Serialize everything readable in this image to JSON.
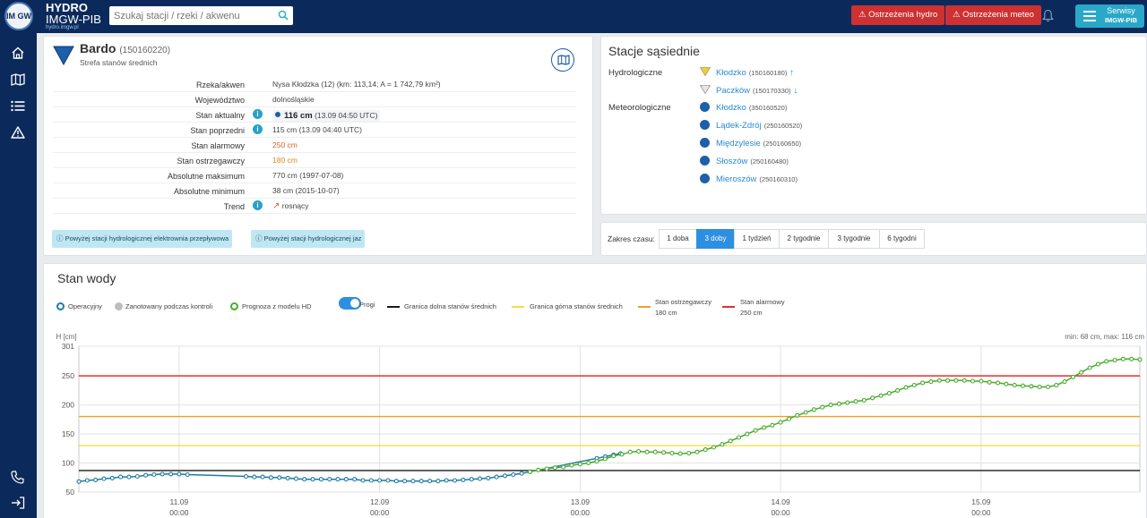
{
  "header": {
    "logo_text": "IM GW",
    "brand_line1": "HYDRO",
    "brand_line2": "IMGW-PIB",
    "brand_line3": "hydro.imgw.pl",
    "search_placeholder": "Szukaj stacji / rzeki / akwenu",
    "btn_hydro": "Ostrzeżenia hydro",
    "btn_meteo": "Ostrzeżenia meteo",
    "serwisy_line1": "Serwisy",
    "serwisy_line2": "IMGW-PIB",
    "colors": {
      "bar": "#0b2a5b",
      "warn": "#cd3131",
      "serwisy": "#2aa8c8"
    }
  },
  "sidebar": {
    "icons": [
      "home-icon",
      "map-icon",
      "list-icon",
      "warning-icon",
      "phone-icon",
      "logout-icon"
    ]
  },
  "station": {
    "name": "Bardo",
    "code": "(150160220)",
    "zone": "Strefa stanów średnich",
    "rows": [
      {
        "label": "Rzeka/akwen",
        "value": "Nysa Kłodzka (12) (km: 113,14; A = 1 742,79 km²)",
        "info": false,
        "style": ""
      },
      {
        "label": "Województwo",
        "value": "dolnośląskie",
        "info": false,
        "style": ""
      },
      {
        "label": "Stan aktualny",
        "value_bold": "116 cm",
        "value": "(13.09 04:50 UTC)",
        "info": true,
        "style": "current"
      },
      {
        "label": "Stan poprzedni",
        "value": "115 cm (13.09 04:40 UTC)",
        "info": true,
        "style": ""
      },
      {
        "label": "Stan alarmowy",
        "value": "250 cm",
        "info": false,
        "style": "red"
      },
      {
        "label": "Stan ostrzegawczy",
        "value": "180 cm",
        "info": false,
        "style": "orange"
      },
      {
        "label": "Absolutne maksimum",
        "value": "770 cm (1997-07-08)",
        "info": false,
        "style": ""
      },
      {
        "label": "Absolutne minimum",
        "value": "38 cm (2015-10-07)",
        "info": false,
        "style": ""
      },
      {
        "label": "Trend",
        "value": "rosnący",
        "info": true,
        "style": "trend"
      }
    ],
    "notes": [
      "Powyżej stacji hydrologicznej elektrownia przepływowa",
      "Powyżej stacji hydrologicznej jaz"
    ]
  },
  "neighbors": {
    "title": "Stacje sąsiednie",
    "hydro_label": "Hydrologiczne",
    "meteo_label": "Meteorologiczne",
    "hydro": [
      {
        "name": "Kłodzko",
        "code": "(150160180)",
        "arrow": "↑",
        "color": "#f2d21a"
      },
      {
        "name": "Paczków",
        "code": "(150170330)",
        "arrow": "↓",
        "color": "#e6e6e6"
      }
    ],
    "meteo": [
      {
        "name": "Kłodzko",
        "code": "(350160520)"
      },
      {
        "name": "Lądek-Zdrój",
        "code": "(250160520)"
      },
      {
        "name": "Międzylesie",
        "code": "(250160650)"
      },
      {
        "name": "Słoszów",
        "code": "(250160480)"
      },
      {
        "name": "Mieroszów",
        "code": "(250160310)"
      }
    ]
  },
  "range": {
    "label": "Zakres czasu:",
    "options": [
      "1 doba",
      "3 doby",
      "1 tydzień",
      "2 tygodnie",
      "3 tygodnie",
      "6 tygodni"
    ],
    "active": "3 doby"
  },
  "chart_panel": {
    "title": "Stan wody",
    "legend": {
      "operacyjny": "Operacyjny",
      "zanotowany": "Zanotowany podczas kontroli",
      "prognoza": "Prognoza z modelu HD",
      "progi": "Progi",
      "dolna": "Granica dolna stanów średnich",
      "gorna": "Granica górna stanów średnich",
      "ostrz_l1": "Stan ostrzegawczy",
      "ostrz_l2": "180 cm",
      "alarm_l1": "Stan alarmowy",
      "alarm_l2": "250 cm"
    },
    "minmax": "min: 68 cm, max: 116 cm"
  },
  "chart_data": {
    "type": "line",
    "ylabel": "H [cm]",
    "ylim": [
      50,
      301
    ],
    "yticks": [
      50,
      100,
      150,
      200,
      250,
      301
    ],
    "xlim": [
      "10.09 12:00",
      "15.09 19:00"
    ],
    "xticks": [
      {
        "label1": "11.09",
        "label2": "00:00"
      },
      {
        "label1": "12.09",
        "label2": "00:00"
      },
      {
        "label1": "13.09",
        "label2": "00:00"
      },
      {
        "label1": "14.09",
        "label2": "00:00"
      },
      {
        "label1": "15.09",
        "label2": "00:00"
      }
    ],
    "grid": true,
    "thresholds": [
      {
        "name": "Stan alarmowy",
        "value": 250,
        "color": "#e03030"
      },
      {
        "name": "Stan ostrzegawczy",
        "value": 180,
        "color": "#f0a020"
      },
      {
        "name": "Granica górna stanów średnich",
        "value": 130,
        "color": "#f0e040"
      },
      {
        "name": "Granica dolna stanów średnich",
        "value": 87,
        "color": "#1a1a1a"
      }
    ],
    "series": [
      {
        "name": "Operacyjny",
        "color": "#1f7aa8",
        "points": [
          [
            "10.09 12:00",
            68
          ],
          [
            "10.09 13:00",
            70
          ],
          [
            "10.09 14:00",
            71
          ],
          [
            "10.09 15:00",
            73
          ],
          [
            "10.09 16:00",
            74
          ],
          [
            "10.09 17:00",
            76
          ],
          [
            "10.09 18:00",
            76
          ],
          [
            "10.09 19:00",
            77
          ],
          [
            "10.09 20:00",
            79
          ],
          [
            "10.09 21:00",
            80
          ],
          [
            "10.09 22:00",
            81
          ],
          [
            "10.09 23:00",
            81
          ],
          [
            "11.09 00:00",
            81
          ],
          [
            "11.09 01:00",
            80
          ],
          [
            "11.09 08:00",
            77
          ],
          [
            "11.09 09:00",
            76
          ],
          [
            "11.09 10:00",
            76
          ],
          [
            "11.09 11:00",
            75
          ],
          [
            "11.09 12:00",
            75
          ],
          [
            "11.09 13:00",
            74
          ],
          [
            "11.09 14:00",
            73
          ],
          [
            "11.09 15:00",
            72
          ],
          [
            "11.09 16:00",
            72
          ],
          [
            "11.09 17:00",
            72
          ],
          [
            "11.09 18:00",
            72
          ],
          [
            "11.09 19:00",
            72
          ],
          [
            "11.09 20:00",
            72
          ],
          [
            "11.09 21:00",
            72
          ],
          [
            "11.09 22:00",
            70
          ],
          [
            "11.09 23:00",
            70
          ],
          [
            "12.09 00:00",
            70
          ],
          [
            "12.09 01:00",
            70
          ],
          [
            "12.09 02:00",
            69
          ],
          [
            "12.09 03:00",
            69
          ],
          [
            "12.09 04:00",
            69
          ],
          [
            "12.09 05:00",
            69
          ],
          [
            "12.09 06:00",
            69
          ],
          [
            "12.09 07:00",
            69
          ],
          [
            "12.09 08:00",
            70
          ],
          [
            "12.09 09:00",
            70
          ],
          [
            "12.09 10:00",
            71
          ],
          [
            "12.09 11:00",
            72
          ],
          [
            "12.09 12:00",
            73
          ],
          [
            "12.09 13:00",
            74
          ],
          [
            "12.09 14:00",
            76
          ],
          [
            "12.09 15:00",
            78
          ],
          [
            "12.09 16:00",
            80
          ],
          [
            "12.09 17:00",
            82
          ],
          [
            "12.09 18:00",
            85
          ],
          [
            "13.09 02:00",
            108
          ],
          [
            "13.09 03:00",
            111
          ],
          [
            "13.09 04:00",
            114
          ],
          [
            "13.09 04:50",
            116
          ]
        ]
      },
      {
        "name": "Prognoza z modelu HD",
        "color": "#4aaa2e",
        "points": [
          [
            "12.09 18:00",
            85
          ],
          [
            "12.09 19:00",
            88
          ],
          [
            "12.09 20:00",
            90
          ],
          [
            "12.09 21:00",
            92
          ],
          [
            "12.09 22:00",
            93
          ],
          [
            "12.09 23:00",
            96
          ],
          [
            "13.09 00:00",
            98
          ],
          [
            "13.09 01:00",
            100
          ],
          [
            "13.09 02:00",
            103
          ],
          [
            "13.09 03:00",
            107
          ],
          [
            "13.09 04:00",
            112
          ],
          [
            "13.09 05:00",
            115
          ],
          [
            "13.09 06:00",
            119
          ],
          [
            "13.09 07:00",
            120
          ],
          [
            "13.09 08:00",
            119
          ],
          [
            "13.09 09:00",
            119
          ],
          [
            "13.09 10:00",
            118
          ],
          [
            "13.09 11:00",
            117
          ],
          [
            "13.09 12:00",
            116
          ],
          [
            "13.09 13:00",
            117
          ],
          [
            "13.09 14:00",
            119
          ],
          [
            "13.09 15:00",
            123
          ],
          [
            "13.09 16:00",
            127
          ],
          [
            "13.09 17:00",
            132
          ],
          [
            "13.09 18:00",
            138
          ],
          [
            "13.09 19:00",
            144
          ],
          [
            "13.09 20:00",
            150
          ],
          [
            "13.09 21:00",
            156
          ],
          [
            "13.09 22:00",
            161
          ],
          [
            "13.09 23:00",
            165
          ],
          [
            "14.09 00:00",
            170
          ],
          [
            "14.09 01:00",
            176
          ],
          [
            "14.09 02:00",
            182
          ],
          [
            "14.09 03:00",
            187
          ],
          [
            "14.09 04:00",
            192
          ],
          [
            "14.09 05:00",
            196
          ],
          [
            "14.09 06:00",
            200
          ],
          [
            "14.09 07:00",
            202
          ],
          [
            "14.09 08:00",
            204
          ],
          [
            "14.09 09:00",
            206
          ],
          [
            "14.09 10:00",
            208
          ],
          [
            "14.09 11:00",
            212
          ],
          [
            "14.09 12:00",
            216
          ],
          [
            "14.09 13:00",
            220
          ],
          [
            "14.09 14:00",
            225
          ],
          [
            "14.09 15:00",
            230
          ],
          [
            "14.09 16:00",
            234
          ],
          [
            "14.09 17:00",
            238
          ],
          [
            "14.09 18:00",
            240
          ],
          [
            "14.09 19:00",
            242
          ],
          [
            "14.09 20:00",
            242
          ],
          [
            "14.09 21:00",
            242
          ],
          [
            "14.09 22:00",
            242
          ],
          [
            "14.09 23:00",
            241
          ],
          [
            "15.09 00:00",
            241
          ],
          [
            "15.09 01:00",
            239
          ],
          [
            "15.09 02:00",
            238
          ],
          [
            "15.09 03:00",
            236
          ],
          [
            "15.09 04:00",
            234
          ],
          [
            "15.09 05:00",
            233
          ],
          [
            "15.09 06:00",
            232
          ],
          [
            "15.09 07:00",
            231
          ],
          [
            "15.09 08:00",
            231
          ],
          [
            "15.09 09:00",
            234
          ],
          [
            "15.09 10:00",
            240
          ],
          [
            "15.09 11:00",
            248
          ],
          [
            "15.09 12:00",
            256
          ],
          [
            "15.09 13:00",
            264
          ],
          [
            "15.09 14:00",
            270
          ],
          [
            "15.09 15:00",
            275
          ],
          [
            "15.09 16:00",
            277
          ],
          [
            "15.09 17:00",
            279
          ],
          [
            "15.09 18:00",
            279
          ],
          [
            "15.09 19:00",
            278
          ]
        ]
      }
    ]
  }
}
